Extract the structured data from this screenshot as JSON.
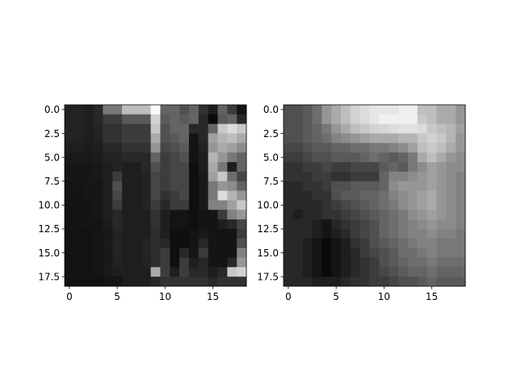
{
  "chart_data": [
    {
      "type": "heatmap",
      "title": "",
      "xlabel": "",
      "ylabel": "",
      "colormap": "gray",
      "xlim": [
        -0.5,
        18.5
      ],
      "ylim": [
        18.5,
        -0.5
      ],
      "xticks": [
        0,
        5,
        10,
        15
      ],
      "xtick_labels": [
        "0",
        "5",
        "10",
        "15"
      ],
      "yticks": [
        0.0,
        2.5,
        5.0,
        7.5,
        10.0,
        12.5,
        15.0,
        17.5
      ],
      "ytick_labels": [
        "0.0",
        "2.5",
        "5.0",
        "7.5",
        "10.0",
        "12.5",
        "15.0",
        "17.5"
      ],
      "grid": false,
      "values": [
        [
          35,
          35,
          30,
          40,
          120,
          120,
          190,
          190,
          190,
          250,
          100,
          100,
          80,
          100,
          50,
          30,
          100,
          60,
          20
        ],
        [
          35,
          35,
          30,
          40,
          60,
          60,
          90,
          90,
          90,
          210,
          90,
          100,
          90,
          100,
          40,
          10,
          90,
          100,
          40
        ],
        [
          35,
          35,
          30,
          35,
          50,
          50,
          60,
          60,
          60,
          200,
          80,
          100,
          100,
          40,
          40,
          100,
          200,
          220,
          200
        ],
        [
          35,
          35,
          30,
          35,
          50,
          50,
          60,
          60,
          60,
          170,
          80,
          90,
          100,
          20,
          40,
          160,
          180,
          190,
          170
        ],
        [
          30,
          30,
          28,
          30,
          40,
          40,
          50,
          50,
          50,
          150,
          70,
          80,
          90,
          20,
          35,
          150,
          170,
          160,
          140
        ],
        [
          25,
          25,
          25,
          28,
          35,
          35,
          40,
          40,
          40,
          100,
          60,
          70,
          80,
          20,
          30,
          180,
          150,
          120,
          100
        ],
        [
          22,
          22,
          22,
          25,
          30,
          35,
          30,
          30,
          40,
          80,
          60,
          70,
          70,
          15,
          30,
          170,
          120,
          30,
          100
        ],
        [
          22,
          22,
          22,
          25,
          30,
          60,
          30,
          30,
          35,
          70,
          60,
          70,
          70,
          15,
          25,
          160,
          200,
          110,
          70
        ],
        [
          20,
          20,
          22,
          22,
          30,
          80,
          30,
          30,
          35,
          70,
          60,
          70,
          70,
          15,
          25,
          120,
          150,
          140,
          100
        ],
        [
          20,
          20,
          22,
          22,
          30,
          70,
          30,
          30,
          35,
          70,
          50,
          60,
          70,
          15,
          25,
          120,
          220,
          180,
          150
        ],
        [
          18,
          20,
          20,
          22,
          30,
          60,
          30,
          30,
          35,
          60,
          40,
          60,
          60,
          15,
          25,
          130,
          130,
          160,
          200
        ],
        [
          18,
          20,
          20,
          22,
          30,
          40,
          30,
          30,
          30,
          50,
          30,
          20,
          20,
          15,
          20,
          20,
          60,
          130,
          150
        ],
        [
          18,
          20,
          20,
          20,
          28,
          40,
          30,
          30,
          30,
          50,
          30,
          20,
          20,
          15,
          20,
          20,
          30,
          40,
          70
        ],
        [
          18,
          18,
          18,
          20,
          25,
          35,
          30,
          30,
          30,
          45,
          30,
          15,
          15,
          20,
          25,
          20,
          20,
          20,
          60
        ],
        [
          18,
          18,
          18,
          20,
          25,
          35,
          30,
          30,
          35,
          45,
          40,
          15,
          15,
          20,
          40,
          20,
          20,
          20,
          80
        ],
        [
          18,
          18,
          18,
          20,
          25,
          35,
          30,
          30,
          35,
          45,
          60,
          15,
          40,
          20,
          60,
          20,
          20,
          20,
          130
        ],
        [
          18,
          18,
          18,
          20,
          25,
          35,
          30,
          30,
          35,
          45,
          60,
          15,
          60,
          30,
          40,
          20,
          20,
          40,
          150
        ],
        [
          18,
          18,
          18,
          20,
          25,
          30,
          30,
          30,
          30,
          170,
          60,
          30,
          60,
          40,
          40,
          30,
          40,
          200,
          210
        ],
        [
          18,
          18,
          18,
          18,
          20,
          20,
          30,
          30,
          30,
          40,
          50,
          50,
          50,
          50,
          50,
          40,
          50,
          50,
          50
        ]
      ]
    },
    {
      "type": "heatmap",
      "title": "",
      "xlabel": "",
      "ylabel": "",
      "colormap": "gray",
      "xlim": [
        -0.5,
        18.5
      ],
      "ylim": [
        18.5,
        -0.5
      ],
      "xticks": [
        0,
        5,
        10,
        15
      ],
      "xtick_labels": [
        "0",
        "5",
        "10",
        "15"
      ],
      "yticks": [
        0.0,
        2.5,
        5.0,
        7.5,
        10.0,
        12.5,
        15.0,
        17.5
      ],
      "ytick_labels": [
        "0.0",
        "2.5",
        "5.0",
        "7.5",
        "10.0",
        "12.5",
        "15.0",
        "17.5"
      ],
      "grid": false,
      "values": [
        [
          80,
          80,
          90,
          110,
          150,
          170,
          190,
          210,
          220,
          230,
          230,
          230,
          240,
          240,
          190,
          190,
          170,
          170,
          150
        ],
        [
          80,
          80,
          90,
          110,
          150,
          170,
          190,
          210,
          220,
          230,
          240,
          240,
          240,
          240,
          200,
          190,
          170,
          170,
          150
        ],
        [
          80,
          80,
          90,
          100,
          120,
          150,
          170,
          190,
          200,
          210,
          215,
          220,
          225,
          225,
          220,
          200,
          190,
          180,
          160
        ],
        [
          80,
          80,
          90,
          100,
          110,
          130,
          140,
          150,
          160,
          170,
          170,
          170,
          180,
          180,
          200,
          210,
          200,
          180,
          150
        ],
        [
          70,
          70,
          80,
          90,
          90,
          100,
          100,
          110,
          110,
          120,
          120,
          130,
          140,
          160,
          190,
          200,
          190,
          170,
          150
        ],
        [
          60,
          60,
          70,
          80,
          80,
          90,
          90,
          90,
          100,
          110,
          100,
          90,
          100,
          120,
          170,
          190,
          170,
          150,
          140
        ],
        [
          50,
          50,
          60,
          60,
          70,
          60,
          60,
          70,
          70,
          70,
          90,
          100,
          90,
          120,
          140,
          160,
          150,
          140,
          140
        ],
        [
          50,
          50,
          50,
          60,
          60,
          50,
          50,
          60,
          60,
          60,
          100,
          130,
          130,
          140,
          150,
          160,
          150,
          140,
          130
        ],
        [
          40,
          40,
          50,
          50,
          60,
          80,
          80,
          90,
          90,
          90,
          100,
          140,
          150,
          150,
          150,
          160,
          150,
          140,
          130
        ],
        [
          40,
          40,
          40,
          50,
          50,
          80,
          90,
          90,
          100,
          100,
          110,
          130,
          140,
          150,
          160,
          170,
          150,
          140,
          130
        ],
        [
          40,
          40,
          40,
          40,
          50,
          60,
          70,
          80,
          90,
          100,
          110,
          120,
          140,
          150,
          160,
          170,
          150,
          140,
          130
        ],
        [
          40,
          30,
          40,
          40,
          50,
          50,
          60,
          70,
          80,
          90,
          100,
          110,
          120,
          140,
          150,
          160,
          150,
          140,
          130
        ],
        [
          40,
          40,
          40,
          30,
          20,
          40,
          50,
          60,
          70,
          80,
          100,
          110,
          120,
          130,
          140,
          150,
          140,
          140,
          130
        ],
        [
          40,
          40,
          40,
          30,
          20,
          30,
          40,
          60,
          70,
          80,
          100,
          110,
          120,
          130,
          130,
          140,
          130,
          130,
          120
        ],
        [
          40,
          40,
          30,
          20,
          10,
          20,
          30,
          50,
          60,
          80,
          90,
          100,
          110,
          120,
          130,
          130,
          120,
          120,
          120
        ],
        [
          40,
          40,
          30,
          20,
          10,
          20,
          30,
          40,
          60,
          70,
          80,
          90,
          110,
          110,
          120,
          130,
          120,
          120,
          120
        ],
        [
          40,
          40,
          30,
          20,
          10,
          20,
          30,
          40,
          50,
          60,
          80,
          90,
          100,
          110,
          110,
          120,
          110,
          110,
          110
        ],
        [
          40,
          40,
          30,
          20,
          10,
          20,
          30,
          40,
          50,
          60,
          70,
          80,
          90,
          100,
          100,
          110,
          100,
          100,
          100
        ],
        [
          40,
          40,
          40,
          30,
          30,
          30,
          40,
          50,
          50,
          60,
          60,
          70,
          80,
          80,
          90,
          100,
          90,
          90,
          90
        ]
      ]
    }
  ]
}
